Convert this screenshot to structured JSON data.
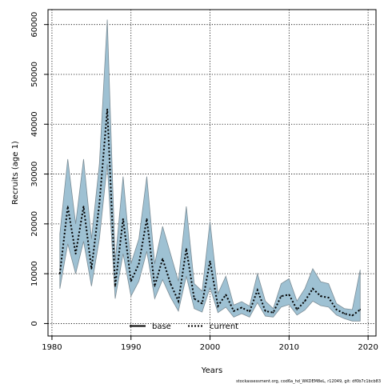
{
  "chart_data": {
    "type": "area",
    "xlabel": "Years",
    "ylabel": "Recruits (age 1)",
    "xlim": [
      1979.5,
      2021
    ],
    "ylim": [
      -2500,
      63000
    ],
    "x_ticks": [
      "1980",
      "1990",
      "2000",
      "2010",
      "2020"
    ],
    "y_ticks": [
      "0",
      "10000",
      "20000",
      "30000",
      "40000",
      "50000",
      "60000"
    ],
    "grid": true,
    "legend_position": "bottom-center",
    "colors": {
      "band": "#9ec1d3",
      "band_edge": "#7c8d96",
      "line": "#000000"
    },
    "legend": [
      {
        "label": "base",
        "style": "solid"
      },
      {
        "label": "current",
        "style": "dotted"
      }
    ],
    "footnote": "stockassessment.org, cod6a_hd_WKDEM8eL, r12049, git: df0b7c1bcb83",
    "x": [
      1981,
      1982,
      1983,
      1984,
      1985,
      1986,
      1987,
      1988,
      1989,
      1990,
      1991,
      1992,
      1993,
      1994,
      1995,
      1996,
      1997,
      1998,
      1999,
      2000,
      2001,
      2002,
      2003,
      2004,
      2005,
      2006,
      2007,
      2008,
      2009,
      2010,
      2011,
      2012,
      2013,
      2014,
      2015,
      2016,
      2017,
      2018,
      2019
    ],
    "series": [
      {
        "name": "current",
        "values": [
          10000,
          23500,
          14000,
          23500,
          11000,
          24000,
          43000,
          7500,
          21000,
          8500,
          12000,
          21000,
          7500,
          13000,
          8000,
          4500,
          15000,
          5000,
          4000,
          12500,
          3500,
          5800,
          2500,
          3200,
          2400,
          6700,
          2500,
          2200,
          5500,
          5800,
          2800,
          4500,
          7000,
          5500,
          5200,
          2800,
          2000,
          1600,
          2800
        ]
      }
    ],
    "upper": [
      18000,
      33000,
      20000,
      33000,
      17000,
      32000,
      61000,
      12500,
      29500,
      12000,
      17000,
      29500,
      12000,
      19500,
      14000,
      8500,
      23500,
      8000,
      6500,
      20500,
      6000,
      9500,
      3700,
      4400,
      3500,
      10000,
      4500,
      3000,
      8000,
      9000,
      4500,
      7000,
      11000,
      8400,
      8000,
      4000,
      3000,
      2800,
      10800
    ],
    "lower": [
      7000,
      16000,
      10000,
      16500,
      7500,
      17000,
      32000,
      5000,
      14000,
      5500,
      8500,
      14500,
      5000,
      8800,
      5300,
      2500,
      9500,
      3000,
      2300,
      7200,
      2200,
      3300,
      1300,
      2000,
      1300,
      4200,
      1500,
      1300,
      3300,
      3800,
      1700,
      2700,
      4500,
      3600,
      3300,
      1700,
      1000,
      500,
      500
    ]
  }
}
